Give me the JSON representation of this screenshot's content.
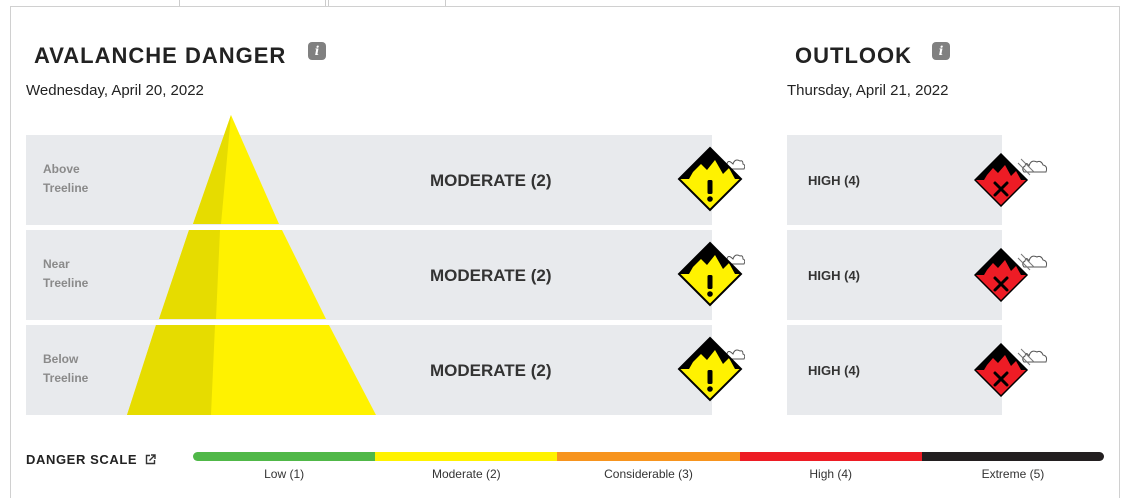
{
  "danger": {
    "title": "AVALANCHE DANGER",
    "date": "Wednesday, April 20, 2022",
    "rows": [
      {
        "label_line1": "Above",
        "label_line2": "Treeline",
        "rating": "MODERATE (2)"
      },
      {
        "label_line1": "Near",
        "label_line2": "Treeline",
        "rating": "MODERATE (2)"
      },
      {
        "label_line1": "Below",
        "label_line2": "Treeline",
        "rating": "MODERATE (2)"
      }
    ],
    "rating_color": "#fff200"
  },
  "outlook": {
    "title": "OUTLOOK",
    "date": "Thursday, April 21, 2022",
    "rows": [
      {
        "rating": "HIGH (4)"
      },
      {
        "rating": "HIGH (4)"
      },
      {
        "rating": "HIGH (4)"
      }
    ],
    "rating_color": "#ee1c25"
  },
  "icons": {
    "info": "info-icon",
    "moderate": "moderate-danger-icon",
    "high": "high-danger-icon",
    "external": "external-link-icon"
  },
  "info_glyph": "i",
  "scale": {
    "title": "DANGER SCALE",
    "levels": [
      {
        "label": "Low (1)",
        "color": "#50b848"
      },
      {
        "label": "Moderate (2)",
        "color": "#fff200"
      },
      {
        "label": "Considerable (3)",
        "color": "#f7941e"
      },
      {
        "label": "High (4)",
        "color": "#ed1c24"
      },
      {
        "label": "Extreme (5)",
        "color": "#231f20"
      }
    ]
  }
}
